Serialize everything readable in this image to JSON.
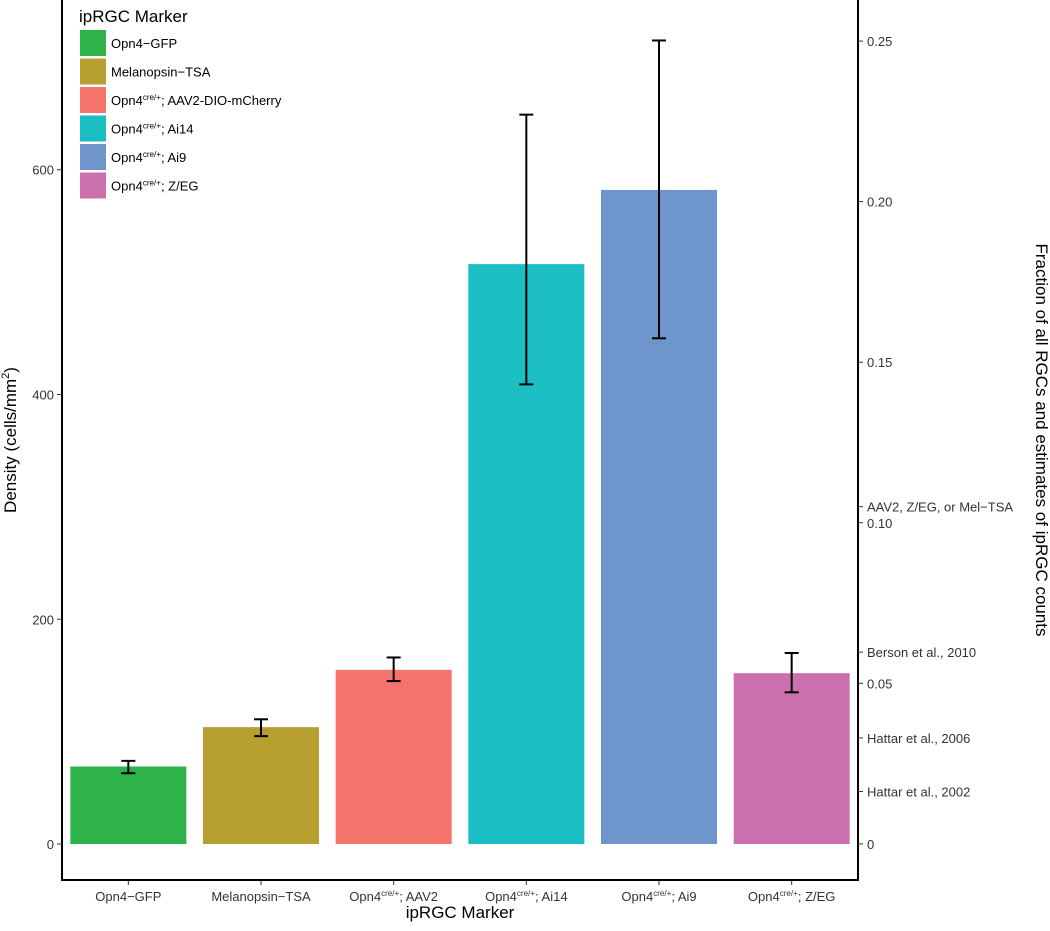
{
  "chart_data": {
    "type": "bar",
    "xlabel": "ipRGC Marker",
    "ylabel": {
      "main": "Density (cells/mm",
      "sup": "2",
      "end": ")"
    },
    "ylabel_right": "Fraction of all RGCs and estimates of ipRGC counts",
    "ylim": [
      -32,
      751
    ],
    "yticks": [
      0,
      200,
      400,
      600
    ],
    "ylim_right": [
      -0.01125,
      0.2628
    ],
    "yticks_right": [
      "0",
      "0.05",
      "0.10",
      "0.15",
      "0.20",
      "0.25"
    ],
    "yticks_right_values": [
      0,
      0.05,
      0.1,
      0.15,
      0.2,
      0.25
    ],
    "reference_ticks_right": [
      {
        "label": "AAV2, Z/EG, or Mel−TSA",
        "value": 0.105
      },
      {
        "label": "Berson et al., 2010",
        "value": 0.0597
      },
      {
        "label": "Hattar et al., 2006",
        "value": 0.033
      },
      {
        "label": "Hattar et al., 2002",
        "value": 0.0163
      }
    ],
    "grid": false,
    "legend": {
      "title": "ipRGC Marker",
      "placement": "top-left"
    },
    "categories": [
      {
        "base": "Opn4−GFP",
        "sup": "",
        "rest": "",
        "legend_rest": ""
      },
      {
        "base": "Melanopsin−TSA",
        "sup": "",
        "rest": "",
        "legend_rest": ""
      },
      {
        "base": "Opn4",
        "sup": "cre/+",
        "rest": "; AAV2",
        "legend_rest": "; AAV2-DIO-mCherry"
      },
      {
        "base": "Opn4",
        "sup": "cre/+",
        "rest": "; Ai14",
        "legend_rest": "; Ai14"
      },
      {
        "base": "Opn4",
        "sup": "cre/+",
        "rest": "; Ai9",
        "legend_rest": "; Ai9"
      },
      {
        "base": "Opn4",
        "sup": "cre/+",
        "rest": "; Z/EG",
        "legend_rest": "; Z/EG"
      }
    ],
    "values": [
      69,
      104,
      155,
      516,
      582,
      152
    ],
    "error_low": [
      63,
      96,
      145,
      409,
      450,
      135
    ],
    "error_high": [
      74,
      111,
      166,
      649,
      715,
      170
    ],
    "colors": [
      "#2db34a",
      "#b8a030",
      "#f4736b",
      "#1bbec2",
      "#6f95cd",
      "#cb70ad"
    ]
  }
}
